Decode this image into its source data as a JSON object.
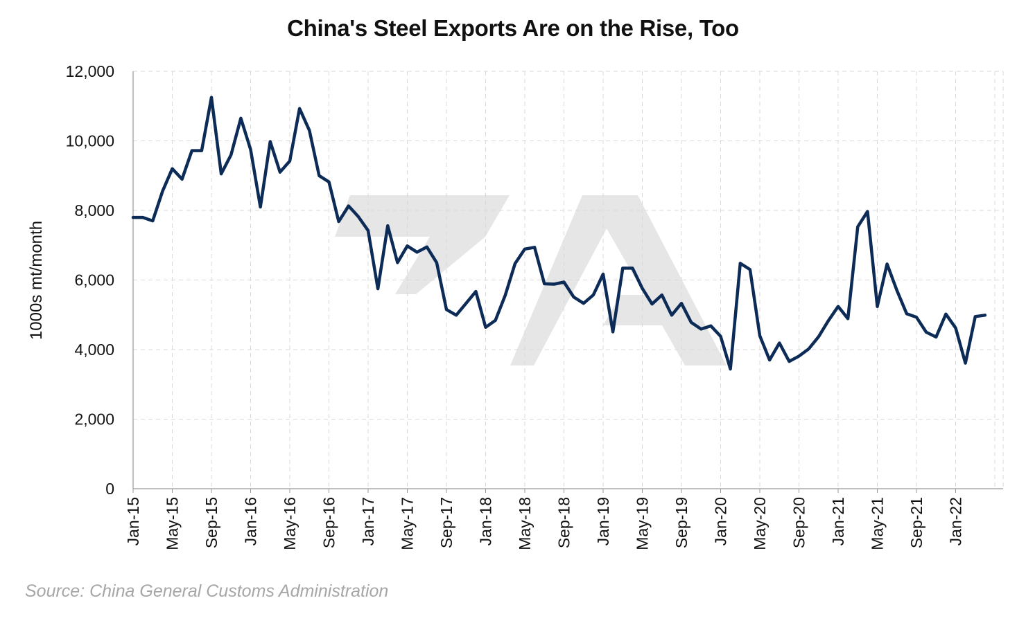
{
  "chart_data": {
    "type": "line",
    "title": "China's Steel Exports Are on the Rise, Too",
    "xlabel": "",
    "ylabel": "1000s mt/month",
    "ylim": [
      0,
      12000
    ],
    "yticks": [
      "0",
      "2,000",
      "4,000",
      "6,000",
      "8,000",
      "10,000",
      "12,000"
    ],
    "ytick_values": [
      0,
      2000,
      4000,
      6000,
      8000,
      10000,
      12000
    ],
    "xtick_labels": [
      "Jan-15",
      "May-15",
      "Sep-15",
      "Jan-16",
      "May-16",
      "Sep-16",
      "Jan-17",
      "May-17",
      "Sep-17",
      "Jan-18",
      "May-18",
      "Sep-18",
      "Jan-19",
      "May-19",
      "Sep-19",
      "Jan-20",
      "May-20",
      "Sep-20",
      "Jan-21",
      "May-21",
      "Sep-21",
      "Jan-22"
    ],
    "grid": true,
    "line_color": "#0d2b57",
    "series": [
      {
        "start_month": "Jan-15",
        "values": [
          7800,
          7800,
          7700,
          8550,
          9200,
          8900,
          9720,
          9720,
          11250,
          9050,
          9600,
          10650,
          9750,
          8100,
          9980,
          9100,
          9420,
          10930,
          10300,
          9000,
          8820,
          7680,
          8130,
          7820,
          7420,
          5750,
          7560,
          6500,
          6980,
          6800,
          6950,
          6500,
          5150,
          4990,
          5330,
          5670,
          4640,
          4840,
          5560,
          6470,
          6890,
          6940,
          5890,
          5880,
          5940,
          5510,
          5330,
          5570,
          6170,
          4510,
          6340,
          6340,
          5760,
          5310,
          5570,
          4990,
          5330,
          4780,
          4590,
          4680,
          4380,
          3440,
          6480,
          6300,
          4400,
          3700,
          4190,
          3660,
          3810,
          4020,
          4370,
          4830,
          5240,
          4890,
          7530,
          7970,
          5240,
          6460,
          5700,
          5030,
          4930,
          4500,
          4360,
          5020,
          4620,
          3610,
          4950,
          4990
        ]
      }
    ]
  },
  "source": "Source: China General Customs Administration"
}
